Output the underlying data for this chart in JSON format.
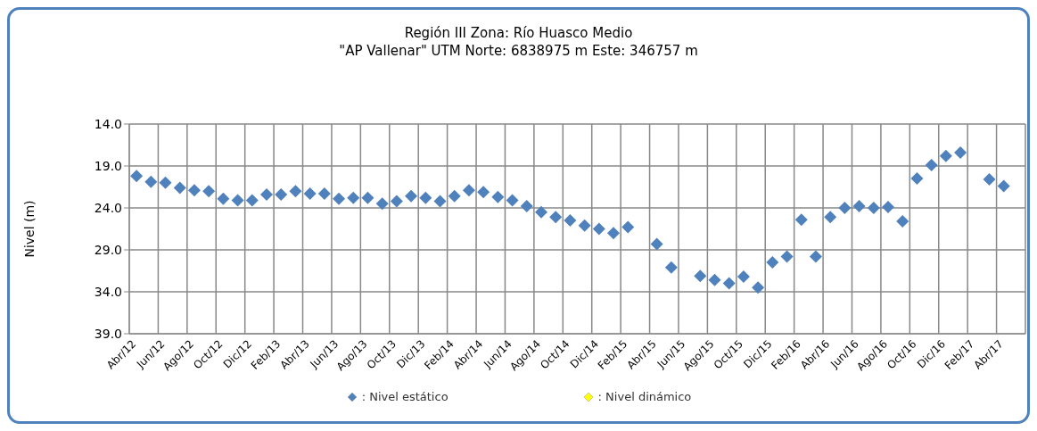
{
  "chart_data": {
    "type": "scatter",
    "title": "Región III Zona: Río Huasco Medio",
    "subtitle": "\"AP Vallenar\" UTM Norte: 6838975 m Este: 346757 m",
    "ylabel": "Nivel (m)",
    "categories": [
      "Abr/12",
      null,
      "Jun/12",
      null,
      "Ago/12",
      null,
      "Oct/12",
      null,
      "Dic/12",
      null,
      "Feb/13",
      null,
      "Abr/13",
      null,
      "Jun/13",
      null,
      "Ago/13",
      null,
      "Oct/13",
      null,
      "Dic/13",
      null,
      "Feb/14",
      null,
      "Abr/14",
      null,
      "Jun/14",
      null,
      "Ago/14",
      null,
      "Oct/14",
      null,
      "Dic/14",
      null,
      "Feb/15",
      null,
      "Abr/15",
      null,
      "Jun/15",
      null,
      "Ago/15",
      null,
      "Oct/15",
      null,
      "Dic/15",
      null,
      "Feb/16",
      null,
      "Abr/16",
      null,
      "Jun/16",
      null,
      "Ago/16",
      null,
      "Oct/16",
      null,
      "Dic/16",
      null,
      "Feb/17",
      null,
      "Abr/17",
      null
    ],
    "series": [
      {
        "name": ": Nivel estático",
        "color": "#4f81bd",
        "values": [
          20.2,
          20.9,
          21.0,
          21.6,
          21.9,
          22.0,
          22.9,
          23.1,
          23.1,
          22.4,
          22.4,
          22.0,
          22.3,
          22.3,
          22.9,
          22.8,
          22.8,
          23.5,
          23.2,
          22.6,
          22.8,
          23.2,
          22.6,
          21.9,
          22.1,
          22.7,
          23.1,
          23.8,
          24.5,
          25.1,
          25.5,
          26.1,
          26.5,
          27.0,
          26.3,
          null,
          28.3,
          31.1,
          null,
          32.1,
          32.6,
          33.0,
          32.2,
          33.5,
          30.5,
          29.8,
          25.4,
          29.8,
          25.1,
          24.0,
          23.8,
          24.0,
          23.9,
          25.6,
          20.5,
          18.9,
          17.8,
          17.4,
          null,
          20.6,
          21.4,
          null
        ]
      },
      {
        "name": ": Nivel dinámico",
        "color": "#ffff00",
        "values": [
          null,
          null,
          null,
          null,
          null,
          null,
          null,
          null,
          null,
          null,
          null,
          null,
          null,
          null,
          null,
          null,
          null,
          null,
          null,
          null,
          null,
          null,
          null,
          null,
          null,
          null,
          null,
          null,
          null,
          null,
          null,
          null,
          null,
          null,
          null,
          null,
          null,
          null,
          null,
          null,
          null,
          null,
          null,
          null,
          null,
          null,
          null,
          null,
          null,
          null,
          null,
          null,
          null,
          null,
          null,
          null,
          null,
          null,
          null,
          null,
          null,
          null
        ]
      }
    ],
    "ylim": [
      39,
      14
    ],
    "yticks": [
      {
        "value": 14,
        "label": "14.0"
      },
      {
        "value": 19,
        "label": "19.0"
      },
      {
        "value": 24,
        "label": "24.0"
      },
      {
        "value": 29,
        "label": "29.0"
      },
      {
        "value": 34,
        "label": "34.0"
      },
      {
        "value": 39,
        "label": "39.0"
      }
    ],
    "grid": true,
    "legend": "bottom",
    "marker": "diamond"
  }
}
